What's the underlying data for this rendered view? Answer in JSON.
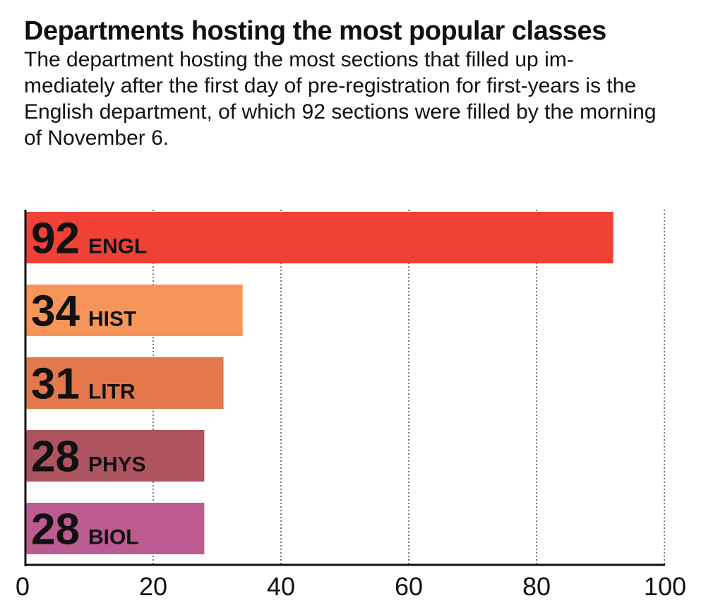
{
  "title": "Departments hosting the most popular classes",
  "subtitle": "The department hosting the most sections that filled up im-mediately after the first day of pre-registration for first-years is the English department, of which 92 sections were filled by the morning of November 6.",
  "chart_data": {
    "type": "bar",
    "orientation": "horizontal",
    "title": "Departments hosting the most popular classes",
    "xlabel": "",
    "ylabel": "",
    "categories": [
      "ENGL",
      "HIST",
      "LITR",
      "PHYS",
      "BIOL"
    ],
    "values": [
      92,
      34,
      31,
      28,
      28
    ],
    "colors": [
      "#ef4136",
      "#f6955a",
      "#e2784c",
      "#ae5460",
      "#bc5b8f"
    ],
    "xlim": [
      0,
      100
    ],
    "xticks": [
      0,
      20,
      40,
      60,
      80,
      100
    ],
    "grid": true,
    "grid_style": "dotted",
    "legend": "none"
  }
}
